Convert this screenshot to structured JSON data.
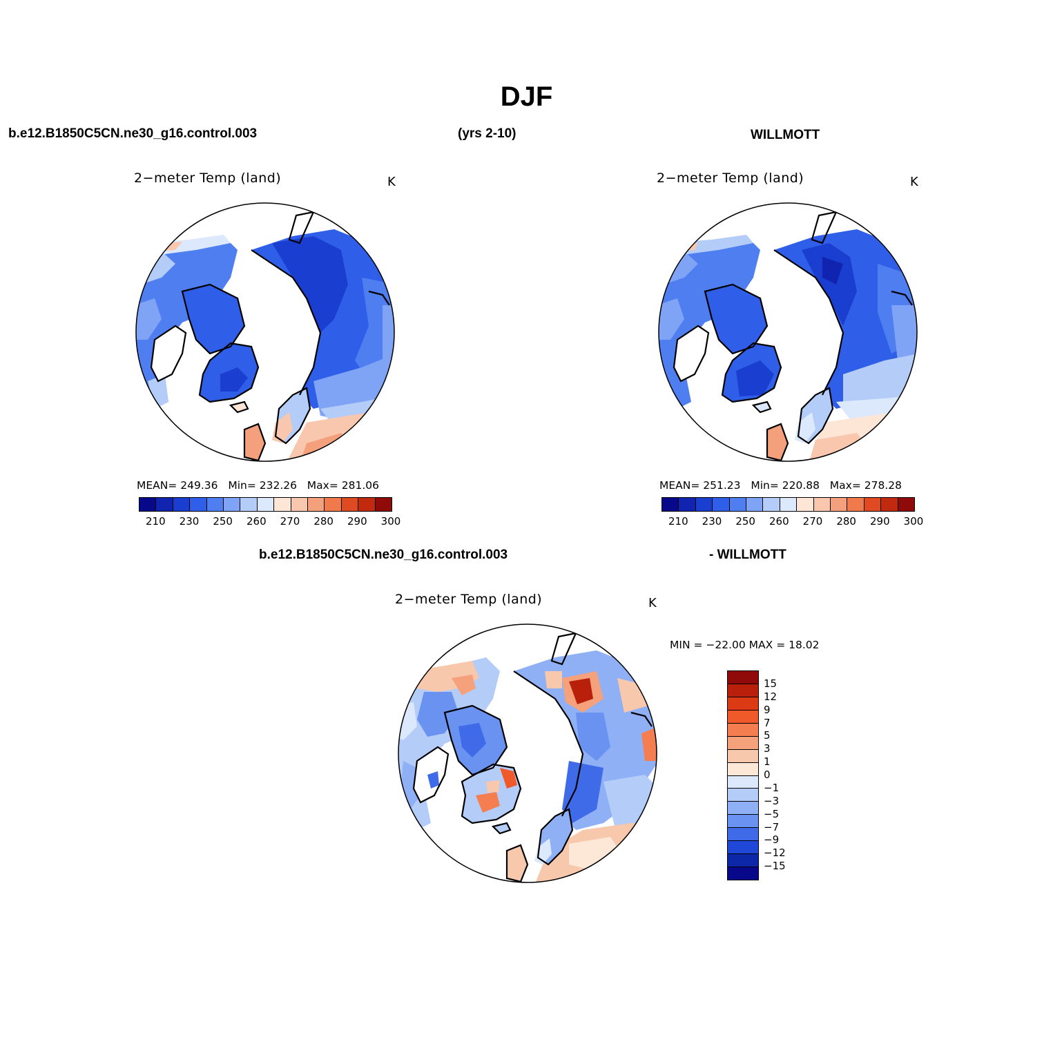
{
  "figure": {
    "title": "DJF",
    "case_name": "b.e12.B1850C5CN.ne30_g16.control.003",
    "years": "(yrs 2-10)",
    "obs_name": "WILLMOTT",
    "diff_case": "b.e12.B1850C5CN.ne30_g16.control.003",
    "diff_obs": "- WILLMOTT"
  },
  "panels": {
    "model": {
      "title": "2−meter Temp (land)",
      "unit": "K",
      "stats": {
        "mean_label": "MEAN=",
        "mean": "249.36",
        "min_label": "Min=",
        "min": "232.26",
        "max_label": "Max=",
        "max": "281.06"
      }
    },
    "obs": {
      "title": "2−meter Temp (land)",
      "unit": "K",
      "stats": {
        "mean_label": "MEAN=",
        "mean": "251.23",
        "min_label": "Min=",
        "min": "220.88",
        "max_label": "Max=",
        "max": "278.28"
      }
    },
    "diff": {
      "title": "2−meter Temp (land)",
      "unit": "K",
      "minmax": "MIN = −22.00 MAX =   18.02"
    }
  },
  "colorbars": {
    "absolute": {
      "colors": [
        "#08088a",
        "#1024b0",
        "#1a3fd0",
        "#2f5fe8",
        "#4f7ef0",
        "#7fa3f5",
        "#b4ccf8",
        "#dce8fb",
        "#fde6d6",
        "#f8c7ad",
        "#f4a07c",
        "#f07a4c",
        "#e04a22",
        "#c22a10",
        "#8f0a08"
      ],
      "labels": [
        "210",
        "230",
        "250",
        "260",
        "270",
        "280",
        "290",
        "300"
      ]
    },
    "difference": {
      "colors": [
        "#8f0a08",
        "#b8200c",
        "#dc3a14",
        "#f05a2a",
        "#f47e50",
        "#f5a17c",
        "#f8c8ac",
        "#fde8d8",
        "#dce8fb",
        "#b4ccf8",
        "#8fb0f5",
        "#6a92f0",
        "#3f6ae8",
        "#1f48d8",
        "#0c28a8",
        "#08088a"
      ],
      "labels": [
        "15",
        "12",
        "9",
        "7",
        "5",
        "3",
        "1",
        "0",
        "−1",
        "−3",
        "−5",
        "−7",
        "−9",
        "−12",
        "−15"
      ]
    }
  }
}
